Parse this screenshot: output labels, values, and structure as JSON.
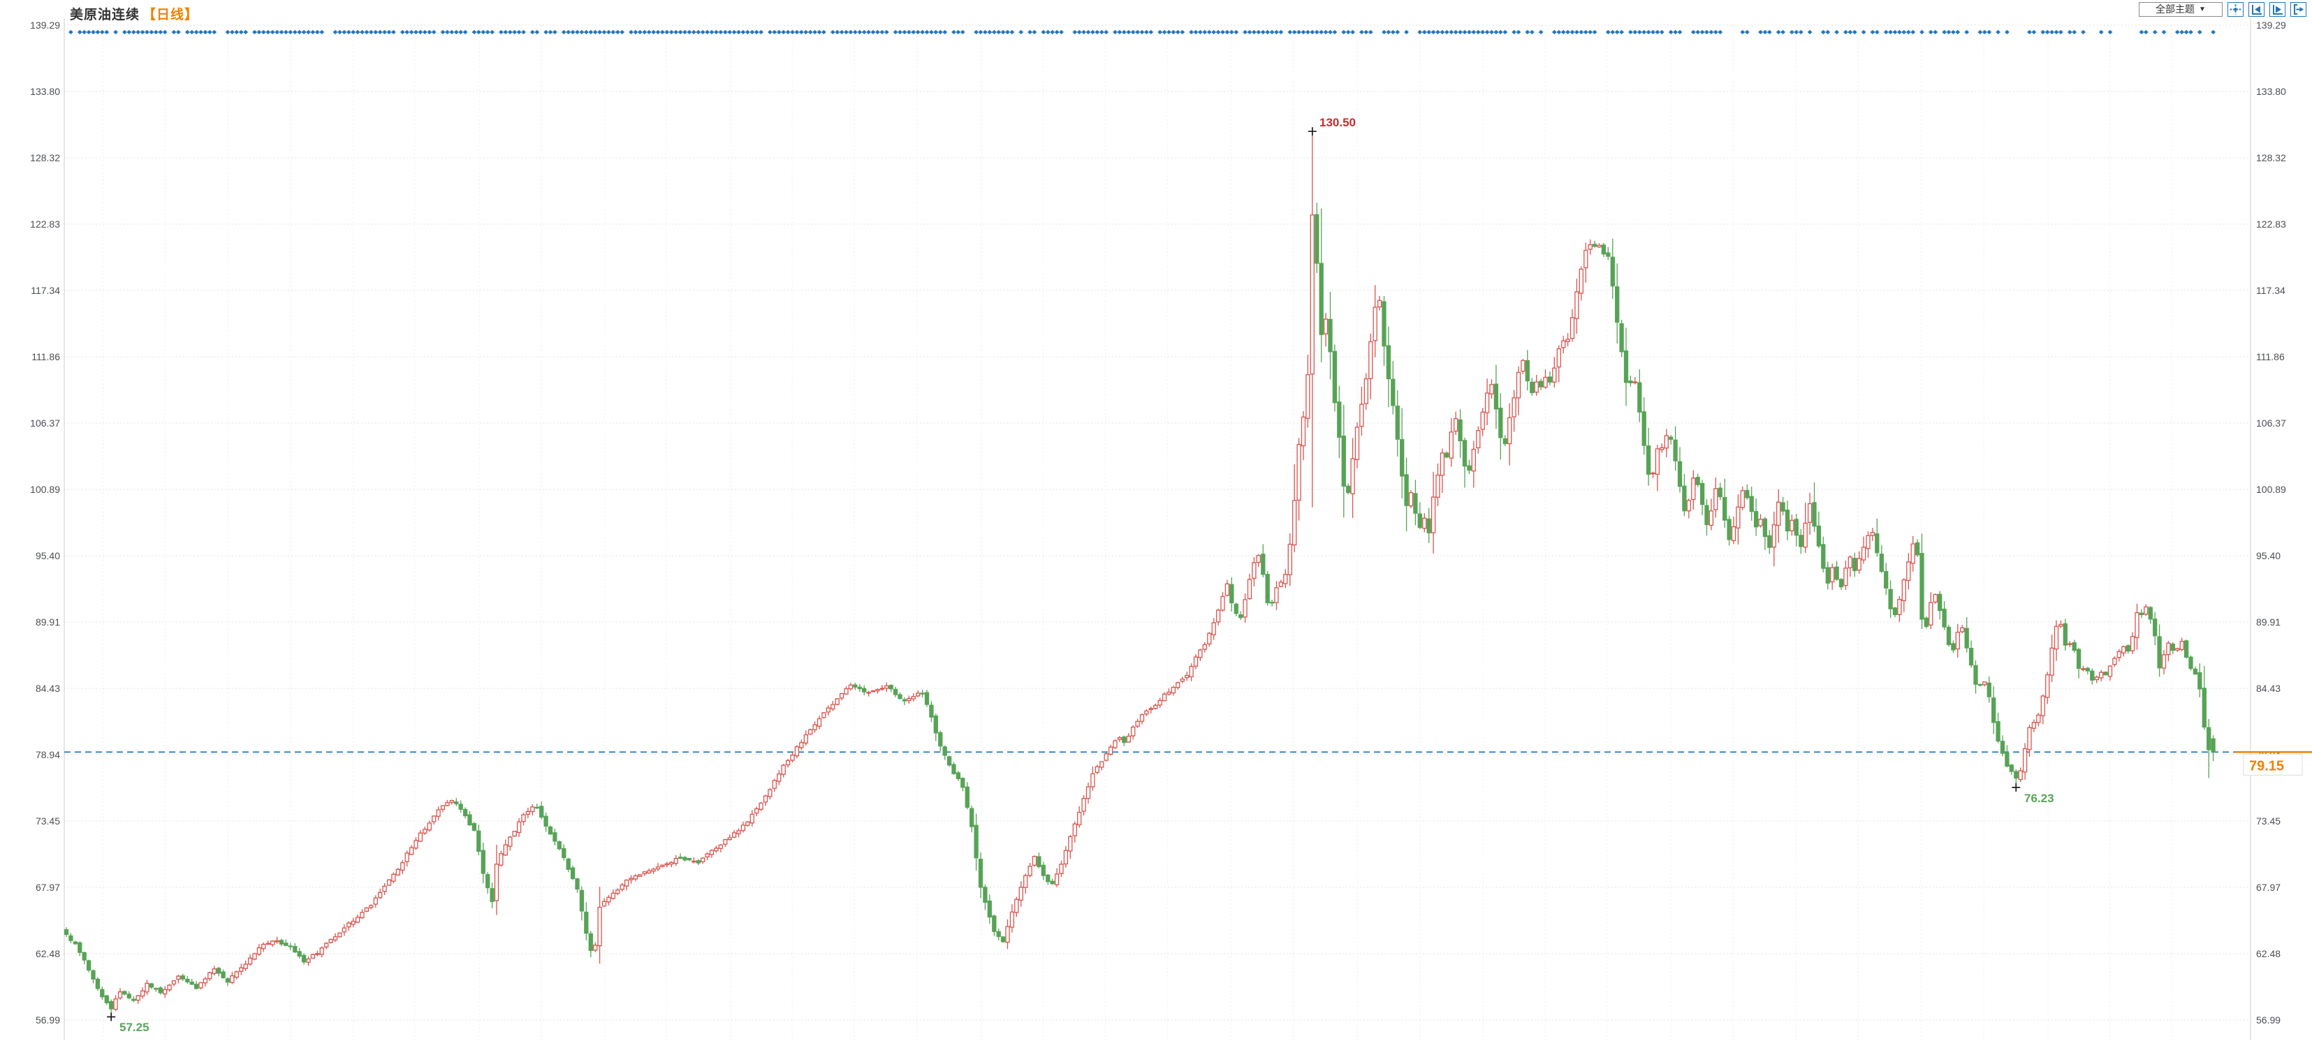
{
  "header": {
    "title": "美原油连续",
    "period_tag": "【日线】"
  },
  "toolbar": {
    "theme_selector": {
      "label": "全部主题",
      "arrow": "▼"
    },
    "icons": [
      {
        "name": "pan-move-icon"
      },
      {
        "name": "pan-to-start-icon"
      },
      {
        "name": "pan-to-end-icon"
      },
      {
        "name": "jump-to-latest-icon"
      }
    ]
  },
  "colors": {
    "up_candle": "#d9544d",
    "down_candle": "#57a356",
    "event_dot": "#2276bd",
    "current_price_line": "#3a87c8",
    "current_price_text": "#f08200",
    "annotation_high": "#cc2a2a",
    "annotation_low": "#58a558",
    "grid": "#e4e4e4",
    "axis_edge": "#cccccc",
    "axis_text": "#4b4e55",
    "marker_cross": "#1a1a1a"
  },
  "chart_data": {
    "type": "candlestick",
    "symbol": "美原油连续",
    "period": "日线",
    "legend_position": "none",
    "grid": true,
    "y_axis_sides": "both",
    "ylim": [
      56.99,
      139.29
    ],
    "y_ticks": [
      139.29,
      133.8,
      128.32,
      122.83,
      117.34,
      111.86,
      106.37,
      100.89,
      95.4,
      89.91,
      84.43,
      78.94,
      73.45,
      67.97,
      62.48,
      56.99
    ],
    "num_candles": 480,
    "close_keypoints": [
      [
        95,
        64.0
      ],
      [
        110,
        63.2
      ],
      [
        130,
        60.8
      ],
      [
        148,
        58.8
      ],
      [
        158,
        57.9
      ],
      [
        172,
        59.3
      ],
      [
        192,
        58.6
      ],
      [
        211,
        60.0
      ],
      [
        230,
        59.2
      ],
      [
        256,
        60.6
      ],
      [
        281,
        59.6
      ],
      [
        307,
        61.2
      ],
      [
        326,
        60.2
      ],
      [
        352,
        61.6
      ],
      [
        371,
        63.0
      ],
      [
        390,
        63.6
      ],
      [
        416,
        63.0
      ],
      [
        435,
        61.9
      ],
      [
        455,
        62.6
      ],
      [
        474,
        63.6
      ],
      [
        493,
        64.6
      ],
      [
        513,
        65.6
      ],
      [
        532,
        66.6
      ],
      [
        552,
        68.1
      ],
      [
        571,
        69.6
      ],
      [
        590,
        71.4
      ],
      [
        610,
        73.0
      ],
      [
        628,
        74.4
      ],
      [
        647,
        75.2
      ],
      [
        666,
        73.9
      ],
      [
        679,
        72.6
      ],
      [
        692,
        69.0
      ],
      [
        705,
        66.8
      ],
      [
        712,
        70.3
      ],
      [
        730,
        72.0
      ],
      [
        750,
        74.0
      ],
      [
        766,
        74.9
      ],
      [
        788,
        72.4
      ],
      [
        807,
        70.4
      ],
      [
        826,
        68.0
      ],
      [
        843,
        63.2
      ],
      [
        850,
        61.9
      ],
      [
        858,
        66.4
      ],
      [
        878,
        67.4
      ],
      [
        897,
        68.5
      ],
      [
        916,
        69.0
      ],
      [
        935,
        69.5
      ],
      [
        955,
        70.0
      ],
      [
        974,
        70.4
      ],
      [
        1000,
        70.0
      ],
      [
        1019,
        71.0
      ],
      [
        1045,
        72.1
      ],
      [
        1070,
        73.4
      ],
      [
        1096,
        75.5
      ],
      [
        1122,
        78.0
      ],
      [
        1147,
        80.0
      ],
      [
        1173,
        82.0
      ],
      [
        1198,
        83.5
      ],
      [
        1218,
        84.8
      ],
      [
        1243,
        84.0
      ],
      [
        1269,
        84.6
      ],
      [
        1294,
        83.4
      ],
      [
        1320,
        84.1
      ],
      [
        1333,
        82.1
      ],
      [
        1346,
        79.6
      ],
      [
        1365,
        77.4
      ],
      [
        1378,
        76.4
      ],
      [
        1391,
        73.0
      ],
      [
        1404,
        68.0
      ],
      [
        1423,
        64.3
      ],
      [
        1436,
        63.4
      ],
      [
        1449,
        66.0
      ],
      [
        1468,
        69.0
      ],
      [
        1481,
        70.6
      ],
      [
        1493,
        69.0
      ],
      [
        1505,
        68.0
      ],
      [
        1517,
        69.5
      ],
      [
        1529,
        71.5
      ],
      [
        1541,
        73.5
      ],
      [
        1553,
        75.5
      ],
      [
        1565,
        77.5
      ],
      [
        1578,
        78.5
      ],
      [
        1590,
        79.5
      ],
      [
        1600,
        80.5
      ],
      [
        1610,
        80.0
      ],
      [
        1620,
        81.0
      ],
      [
        1632,
        82.0
      ],
      [
        1642,
        82.5
      ],
      [
        1652,
        83.0
      ],
      [
        1661,
        83.5
      ],
      [
        1670,
        84.0
      ],
      [
        1680,
        84.5
      ],
      [
        1690,
        85.0
      ],
      [
        1700,
        85.5
      ],
      [
        1712,
        87.0
      ],
      [
        1724,
        88.0
      ],
      [
        1736,
        89.5
      ],
      [
        1748,
        91.5
      ],
      [
        1757,
        93.0
      ],
      [
        1766,
        91.0
      ],
      [
        1775,
        90.0
      ],
      [
        1784,
        92.0
      ],
      [
        1793,
        94.5
      ],
      [
        1802,
        95.5
      ],
      [
        1811,
        93.0
      ],
      [
        1817,
        90.5
      ],
      [
        1824,
        92.0
      ],
      [
        1831,
        93.5
      ],
      [
        1838,
        93.0
      ],
      [
        1845,
        95.5
      ],
      [
        1852,
        99.0
      ],
      [
        1858,
        104.0
      ],
      [
        1865,
        106.5
      ],
      [
        1872,
        109.5
      ],
      [
        1879,
        124.0
      ],
      [
        1886,
        119.0
      ],
      [
        1892,
        113.5
      ],
      [
        1898,
        115.0
      ],
      [
        1905,
        112.0
      ],
      [
        1911,
        108.0
      ],
      [
        1918,
        105.0
      ],
      [
        1924,
        101.0
      ],
      [
        1930,
        100.5
      ],
      [
        1937,
        103.5
      ],
      [
        1943,
        106.0
      ],
      [
        1950,
        108.0
      ],
      [
        1956,
        110.0
      ],
      [
        1962,
        113.0
      ],
      [
        1969,
        116.0
      ],
      [
        1975,
        116.5
      ],
      [
        1981,
        113.0
      ],
      [
        1988,
        110.0
      ],
      [
        1994,
        108.0
      ],
      [
        2000,
        105.5
      ],
      [
        2007,
        102.0
      ],
      [
        2013,
        99.5
      ],
      [
        2019,
        101.0
      ],
      [
        2026,
        99.0
      ],
      [
        2032,
        97.5
      ],
      [
        2039,
        98.5
      ],
      [
        2045,
        97.0
      ],
      [
        2051,
        100.0
      ],
      [
        2058,
        102.0
      ],
      [
        2064,
        104.0
      ],
      [
        2070,
        103.0
      ],
      [
        2077,
        105.5
      ],
      [
        2083,
        107.0
      ],
      [
        2090,
        105.0
      ],
      [
        2096,
        103.0
      ],
      [
        2102,
        102.0
      ],
      [
        2109,
        104.0
      ],
      [
        2115,
        105.5
      ],
      [
        2121,
        107.0
      ],
      [
        2128,
        108.5
      ],
      [
        2134,
        110.0
      ],
      [
        2141,
        108.0
      ],
      [
        2147,
        105.5
      ],
      [
        2153,
        104.0
      ],
      [
        2160,
        106.5
      ],
      [
        2166,
        108.0
      ],
      [
        2172,
        110.0
      ],
      [
        2179,
        112.0
      ],
      [
        2185,
        110.5
      ],
      [
        2191,
        108.5
      ],
      [
        2198,
        110.0
      ],
      [
        2204,
        109.0
      ],
      [
        2211,
        110.5
      ],
      [
        2217,
        109.5
      ],
      [
        2223,
        110.5
      ],
      [
        2230,
        112.0
      ],
      [
        2236,
        113.5
      ],
      [
        2242,
        112.5
      ],
      [
        2249,
        114.5
      ],
      [
        2255,
        116.5
      ],
      [
        2261,
        118.5
      ],
      [
        2268,
        120.0
      ],
      [
        2274,
        121.5
      ],
      [
        2281,
        120.5
      ],
      [
        2287,
        121.8
      ],
      [
        2293,
        120.0
      ],
      [
        2300,
        121.0
      ],
      [
        2306,
        119.0
      ],
      [
        2312,
        116.0
      ],
      [
        2318,
        113.5
      ],
      [
        2325,
        111.0
      ],
      [
        2331,
        108.5
      ],
      [
        2337,
        110.5
      ],
      [
        2344,
        109.0
      ],
      [
        2350,
        106.0
      ],
      [
        2356,
        103.5
      ],
      [
        2363,
        101.0
      ],
      [
        2369,
        103.0
      ],
      [
        2375,
        105.0
      ],
      [
        2382,
        104.0
      ],
      [
        2388,
        106.0
      ],
      [
        2394,
        104.5
      ],
      [
        2401,
        102.5
      ],
      [
        2407,
        100.5
      ],
      [
        2413,
        98.5
      ],
      [
        2420,
        100.5
      ],
      [
        2426,
        102.5
      ],
      [
        2432,
        101.0
      ],
      [
        2439,
        99.0
      ],
      [
        2445,
        97.5
      ],
      [
        2451,
        99.5
      ],
      [
        2458,
        101.5
      ],
      [
        2464,
        100.0
      ],
      [
        2470,
        98.0
      ],
      [
        2477,
        96.5
      ],
      [
        2483,
        98.0
      ],
      [
        2489,
        99.5
      ],
      [
        2496,
        101.0
      ],
      [
        2502,
        100.0
      ],
      [
        2508,
        99.0
      ],
      [
        2515,
        97.5
      ],
      [
        2521,
        98.5
      ],
      [
        2527,
        97.0
      ],
      [
        2534,
        96.0
      ],
      [
        2540,
        98.0
      ],
      [
        2546,
        99.8
      ],
      [
        2553,
        99.0
      ],
      [
        2559,
        97.5
      ],
      [
        2565,
        98.5
      ],
      [
        2572,
        97.0
      ],
      [
        2578,
        96.0
      ],
      [
        2584,
        98.0
      ],
      [
        2591,
        99.8
      ],
      [
        2597,
        98.0
      ],
      [
        2603,
        96.5
      ],
      [
        2610,
        94.5
      ],
      [
        2616,
        93.0
      ],
      [
        2622,
        94.5
      ],
      [
        2629,
        93.5
      ],
      [
        2635,
        92.5
      ],
      [
        2641,
        94.0
      ],
      [
        2648,
        95.5
      ],
      [
        2654,
        94.0
      ],
      [
        2660,
        95.0
      ],
      [
        2667,
        96.0
      ],
      [
        2673,
        97.0
      ],
      [
        2680,
        97.5
      ],
      [
        2686,
        96.0
      ],
      [
        2692,
        94.5
      ],
      [
        2699,
        93.0
      ],
      [
        2705,
        91.5
      ],
      [
        2711,
        90.0
      ],
      [
        2718,
        91.5
      ],
      [
        2724,
        93.0
      ],
      [
        2730,
        94.5
      ],
      [
        2737,
        96.0
      ],
      [
        2743,
        97.5
      ],
      [
        2750,
        90.5
      ],
      [
        2756,
        89.0
      ],
      [
        2762,
        91.0
      ],
      [
        2769,
        92.5
      ],
      [
        2775,
        91.5
      ],
      [
        2781,
        90.0
      ],
      [
        2788,
        88.5
      ],
      [
        2794,
        87.0
      ],
      [
        2800,
        88.5
      ],
      [
        2807,
        90.0
      ],
      [
        2813,
        88.5
      ],
      [
        2819,
        87.0
      ],
      [
        2826,
        85.5
      ],
      [
        2832,
        84.0
      ],
      [
        2838,
        85.5
      ],
      [
        2845,
        84.5
      ],
      [
        2851,
        83.0
      ],
      [
        2857,
        80.5
      ],
      [
        2864,
        79.5
      ],
      [
        2870,
        78.5
      ],
      [
        2876,
        77.8
      ],
      [
        2883,
        77.2
      ],
      [
        2890,
        77.0
      ],
      [
        2896,
        78.5
      ],
      [
        2902,
        80.5
      ],
      [
        2909,
        82.0
      ],
      [
        2915,
        81.0
      ],
      [
        2921,
        83.0
      ],
      [
        2928,
        84.5
      ],
      [
        2934,
        86.5
      ],
      [
        2940,
        88.5
      ],
      [
        2947,
        90.5
      ],
      [
        2953,
        89.0
      ],
      [
        2959,
        87.5
      ],
      [
        2966,
        88.5
      ],
      [
        2972,
        87.0
      ],
      [
        2978,
        85.5
      ],
      [
        2985,
        86.5
      ],
      [
        2991,
        85.5
      ],
      [
        2997,
        85.0
      ],
      [
        3004,
        85.5
      ],
      [
        3010,
        86.0
      ],
      [
        3016,
        85.5
      ],
      [
        3023,
        86.5
      ],
      [
        3029,
        87.0
      ],
      [
        3035,
        87.5
      ],
      [
        3042,
        88.0
      ],
      [
        3048,
        87.5
      ],
      [
        3054,
        89.0
      ],
      [
        3061,
        91.0
      ],
      [
        3067,
        90.5
      ],
      [
        3073,
        91.3
      ],
      [
        3080,
        90.0
      ],
      [
        3086,
        88.5
      ],
      [
        3092,
        86.0
      ],
      [
        3099,
        87.5
      ],
      [
        3105,
        88.3
      ],
      [
        3111,
        87.5
      ],
      [
        3118,
        87.8
      ],
      [
        3124,
        88.3
      ],
      [
        3130,
        87.0
      ],
      [
        3137,
        86.0
      ],
      [
        3143,
        85.5
      ],
      [
        3149,
        84.5
      ],
      [
        3156,
        81.0
      ],
      [
        3162,
        79.3
      ],
      [
        3168,
        79.15
      ]
    ],
    "annotations": {
      "high": {
        "x": 1879,
        "price": 130.5,
        "label": "130.50"
      },
      "low1": {
        "x": 157,
        "price": 57.25,
        "label": "57.25"
      },
      "low2": {
        "x": 2887,
        "price": 76.23,
        "label": "76.23"
      },
      "tail_wick": {
        "x": 3162,
        "price": 77.0
      },
      "current_price": {
        "price": 79.15,
        "label": "79.15"
      }
    }
  }
}
